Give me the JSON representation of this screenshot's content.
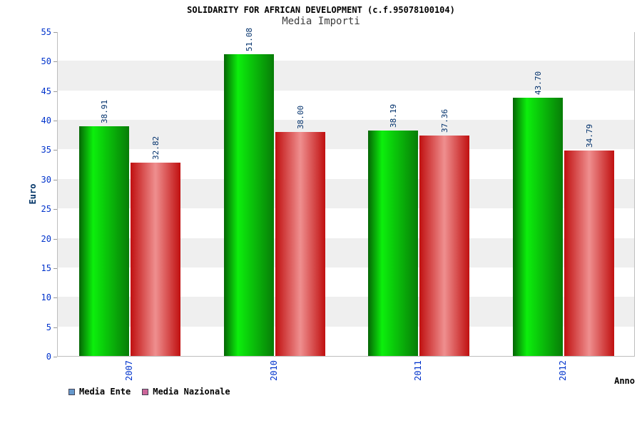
{
  "header": {
    "title": "SOLIDARITY FOR AFRICAN DEVELOPMENT (c.f.95078100104)",
    "subtitle": "Media Importi"
  },
  "chart_data": {
    "type": "bar",
    "title": "SOLIDARITY FOR AFRICAN DEVELOPMENT (c.f.95078100104)",
    "subtitle": "Media Importi",
    "categories": [
      "2007",
      "2010",
      "2011",
      "2012"
    ],
    "series": [
      {
        "name": "Media Ente",
        "values": [
          38.91,
          51.08,
          38.19,
          43.7
        ],
        "legend_color": "#6699cc",
        "bar_style": "green-cylinder"
      },
      {
        "name": "Media Nazionale",
        "values": [
          32.82,
          38.0,
          37.36,
          34.79
        ],
        "legend_color": "#cc6699",
        "bar_style": "red-cylinder"
      }
    ],
    "value_format": "0.00",
    "xlabel": "Anno",
    "ylabel": "Euro",
    "ylim": [
      0,
      55
    ],
    "ytick_step": 5,
    "yticks": [
      "0",
      "5",
      "10",
      "15",
      "20",
      "25",
      "30",
      "35",
      "40",
      "45",
      "50",
      "55"
    ],
    "grid": "horizontal-alternating-bands",
    "legend_position": "bottom-left"
  },
  "colors": {
    "band": "#efefef",
    "plot_border": "#bdbdbd",
    "tick_blue": "#0033cc",
    "value_navy": "#00306b",
    "ylabel_navy": "#003366",
    "green_bar": [
      "#056505",
      "#0cef0c",
      "#077d07"
    ],
    "red_bar": [
      "#c01010",
      "#ef8f8f",
      "#c01010"
    ]
  }
}
